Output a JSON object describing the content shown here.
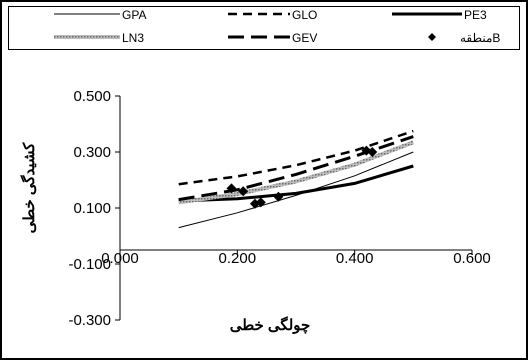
{
  "chart_data": {
    "type": "line",
    "title": "",
    "xlabel": "چولگی خطی",
    "ylabel": "کشیدگی خطی",
    "xlim": [
      0.0,
      0.6
    ],
    "ylim": [
      -0.3,
      0.5
    ],
    "x_ticks": [
      "0.000",
      "0.200",
      "0.400",
      "0.600"
    ],
    "y_ticks": [
      "0.500",
      "0.300",
      "0.100",
      "-0.100",
      "-0.300"
    ],
    "grid": false,
    "legend_position": "top",
    "series": [
      {
        "name": "GPA",
        "style": "thin",
        "color": "#000000",
        "points": [
          [
            0.1,
            0.03
          ],
          [
            0.2,
            0.083
          ],
          [
            0.3,
            0.145
          ],
          [
            0.4,
            0.215
          ],
          [
            0.5,
            0.3
          ]
        ]
      },
      {
        "name": "GLO",
        "style": "dashed",
        "color": "#000000",
        "points": [
          [
            0.1,
            0.185
          ],
          [
            0.2,
            0.213
          ],
          [
            0.3,
            0.253
          ],
          [
            0.4,
            0.305
          ],
          [
            0.5,
            0.375
          ]
        ]
      },
      {
        "name": "PE3",
        "style": "thick",
        "color": "#000000",
        "points": [
          [
            0.1,
            0.125
          ],
          [
            0.2,
            0.133
          ],
          [
            0.3,
            0.152
          ],
          [
            0.4,
            0.188
          ],
          [
            0.5,
            0.25
          ]
        ]
      },
      {
        "name": "LN3",
        "style": "textured",
        "color": "#8a8a8a",
        "points": [
          [
            0.1,
            0.12
          ],
          [
            0.2,
            0.15
          ],
          [
            0.3,
            0.195
          ],
          [
            0.4,
            0.255
          ],
          [
            0.5,
            0.335
          ]
        ]
      },
      {
        "name": "GEV",
        "style": "thick-dashed",
        "color": "#000000",
        "points": [
          [
            0.1,
            0.13
          ],
          [
            0.2,
            0.165
          ],
          [
            0.3,
            0.22
          ],
          [
            0.4,
            0.285
          ],
          [
            0.5,
            0.355
          ]
        ]
      }
    ],
    "scatter": {
      "name": "منطقهB",
      "marker": "diamond",
      "points": [
        [
          0.19,
          0.17
        ],
        [
          0.21,
          0.16
        ],
        [
          0.23,
          0.115
        ],
        [
          0.24,
          0.12
        ],
        [
          0.27,
          0.14
        ],
        [
          0.42,
          0.305
        ],
        [
          0.43,
          0.3
        ]
      ]
    }
  }
}
